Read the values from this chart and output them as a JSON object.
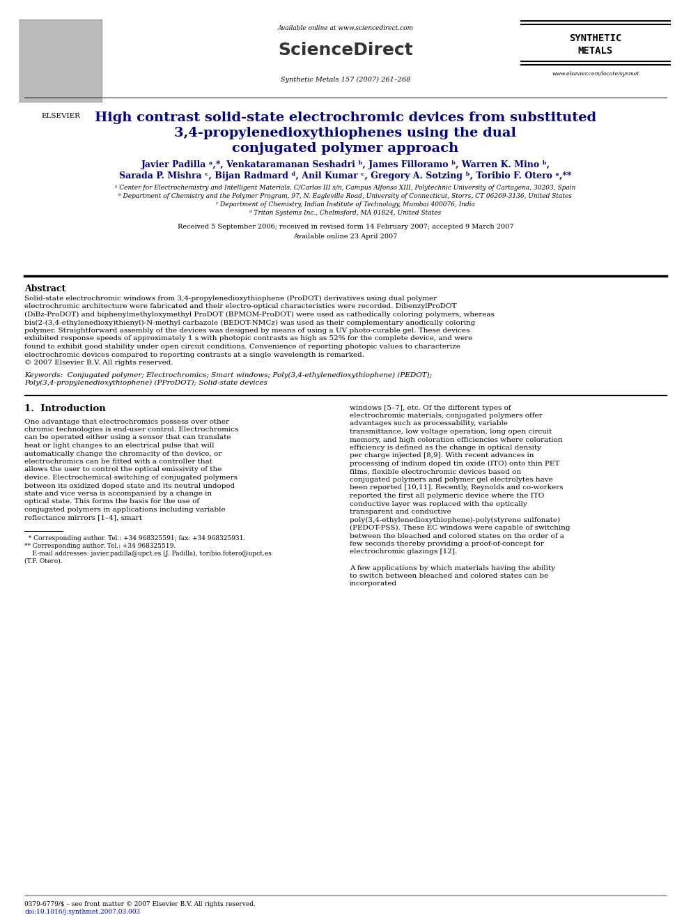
{
  "page_width": 9.92,
  "page_height": 13.23,
  "bg_color": "#ffffff",
  "top_bar_text": "Available online at www.sciencedirect.com",
  "journal_info": "Synthetic Metals 157 (2007) 261–268",
  "elsevier_label": "ELSEVIER",
  "sd_label": "ScienceDirect",
  "journal_label_line1": "SYNTHETIC",
  "journal_label_line2": "METALS",
  "url_label": "www.elsevier.com/locate/synmet",
  "title_line1": "High contrast solid-state electrochromic devices from substituted",
  "title_line2": "3,4-propylenedioxythiophenes using the dual",
  "title_line3": "conjugated polymer approach",
  "authors_line1": "Javier Padilla ᵃ,*, Venkataramanan Seshadri ᵇ, James Filloramo ᵇ, Warren K. Mino ᵇ,",
  "authors_line2": "Sarada P. Mishra ᶜ, Bijan Radmard ᵈ, Anil Kumar ᶜ, Gregory A. Sotzing ᵇ, Toribio F. Otero ᵃ,**",
  "affil_a": "ᵃ Center for Electrochemistry and Intelligent Materials, C/Carlos III s/n, Campus Alfonso XIII, Polytechnic University of Cartagena, 30203, Spain",
  "affil_b": "ᵇ Department of Chemistry and the Polymer Program, 97, N. Eagleville Road, University of Connecticut, Storrs, CT 06269-3136, United States",
  "affil_c": "ᶜ Department of Chemistry, Indian Institute of Technology, Mumbai 400076, India",
  "affil_d": "ᵈ Triton Systems Inc., Chelmsford, MA 01824, United States",
  "received_text": "Received 5 September 2006; received in revised form 14 February 2007; accepted 9 March 2007",
  "available_text": "Available online 23 April 2007",
  "abstract_title": "Abstract",
  "abstract_body": "   Solid-state electrochromic windows from 3,4-propylenedioxythiophene (ProDOT) derivatives using dual polymer electrochromic architecture were fabricated and their electro-optical characteristics were recorded. DibenzylProDOT (DiBz-ProDOT) and biphenylmethyloxymethyl ProDOT (BPMOM-ProDOT) were used as cathodically coloring polymers, whereas bis(2-(3,4-ethylenedioxy)thienyl)-N-methyl carbazole (BEDOT-NMCz) was used as their complementary anodically coloring polymer. Straightforward assembly of the devices was designed by means of using a UV photo-curable gel. These devices exhibited response speeds of approximately 1 s with photopic contrasts as high as 52% for the complete device, and were found to exhibit good stability under open circuit conditions. Convenience of reporting photopic values to characterize electrochromic devices compared to reporting contrasts at a single wavelength is remarked.\n© 2007 Elsevier B.V. All rights reserved.",
  "keywords_label": "Keywords:",
  "keywords_body": "  Conjugated polymer; Electrochromics; Smart windows; Poly(3,4-ethylenedioxythiophene) (PEDOT); Poly(3,4-propylenedioxythiophene) (PProDOT); Solid-state devices",
  "section1_title": "1.  Introduction",
  "section1_col1_indent": "   One advantage that electrochromics possess over other chromic technologies is end-user control. Electrochromics can be operated either using a sensor that can translate heat or light changes to an electrical pulse that will automatically change the chromacity of the device, or electrochromics can be fitted with a controller that allows the user to control the optical emissivity of the device. Electrochemical switching of conjugated polymers between its oxidized doped state and its neutral undoped state and vice versa is accompanied by a change in optical state. This forms the basis for the use of conjugated polymers in applications including variable reflectance mirrors [1–4], smart",
  "section1_col2": "windows [5–7], etc. Of the different types of electrochromic materials, conjugated polymers offer advantages such as processability, variable transmittance, low voltage operation, long open circuit memory, and high coloration efficiencies where coloration efficiency is defined as the change in optical density per charge injected [8,9]. With recent advances in processing of indium doped tin oxide (ITO) onto thin PET films, flexible electrochromic devices based on conjugated polymers and polymer gel electrolytes have been reported [10,11]. Recently, Reynolds and co-workers reported the first all polymeric device where the ITO conductive layer was replaced with the optically transparent and conductive poly(3,4-ethylenedioxythiophene)-poly(styrene sulfonate) (PEDOT-PSS). These EC windows were capable of switching between the bleached and colored states on the order of a few seconds thereby providing a proof-of-concept for electrochromic glazings [12].\n\n   A few applications by which materials having the ability to switch between bleached and colored states can be incorporated",
  "footnote1": "  * Corresponding author. Tel.: +34 968325591; fax: +34 968325931.",
  "footnote2": "** Corresponding author. Tel.: +34 968325519.",
  "footnote3": "    E-mail addresses: javier.padilla@upct.es (J. Padilla), toribio.fotero@upct.es\n(T.F. Otero).",
  "footer_line1": "0379-6779/$ – see front matter © 2007 Elsevier B.V. All rights reserved.",
  "footer_line2": "doi:10.1016/j.synthmet.2007.03.003",
  "title_color": "#000080",
  "author_color": "#000080",
  "body_color": "#000000",
  "link_color": "#0000cc"
}
